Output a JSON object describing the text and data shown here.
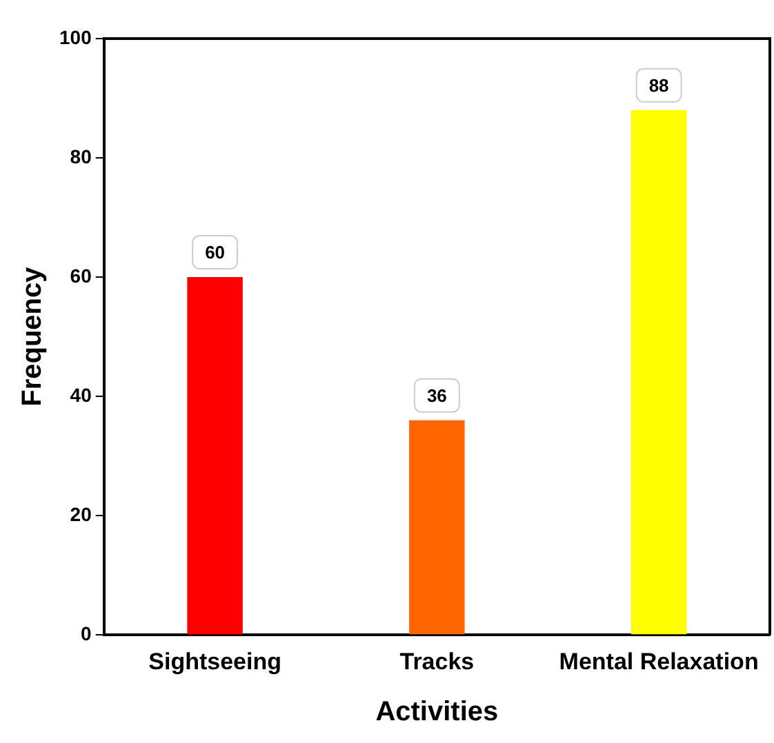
{
  "chart_data": {
    "type": "bar",
    "xlabel": "Activities",
    "ylabel": "Frequency",
    "categories": [
      "Sightseeing",
      "Tracks",
      "Mental Relaxation"
    ],
    "values": [
      60,
      36,
      88
    ],
    "colors": [
      "#ff0000",
      "#ff6600",
      "#ffff00"
    ],
    "ylim": [
      0,
      100
    ],
    "yticks": [
      0,
      20,
      40,
      60,
      80,
      100
    ],
    "grid": false,
    "legend": false,
    "data_labels": true
  }
}
